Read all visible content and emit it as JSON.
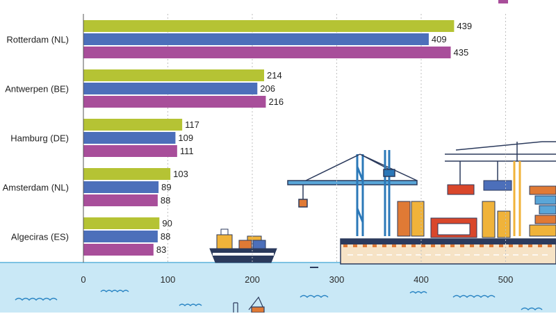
{
  "chart_data": {
    "type": "bar",
    "orientation": "horizontal",
    "categories": [
      "Rotterdam (NL)",
      "Antwerpen (BE)",
      "Hamburg (DE)",
      "Amsterdam (NL)",
      "Algeciras (ES)"
    ],
    "series": [
      {
        "color": "#b5c334",
        "values": [
          439,
          214,
          117,
          103,
          90
        ]
      },
      {
        "color": "#4c6fba",
        "values": [
          409,
          206,
          109,
          89,
          88
        ]
      },
      {
        "color": "#a84e9a",
        "values": [
          435,
          216,
          111,
          88,
          83
        ]
      }
    ],
    "xlim": [
      0,
      550
    ],
    "xticks": [
      0,
      100,
      200,
      300,
      400,
      500
    ],
    "grid": true,
    "legend": "partially visible at top-right",
    "background_illustration": "port with cranes, containers, ship and sea"
  },
  "colors": {
    "sea": "#c9e8f6",
    "sea_line": "#7cc2e2",
    "axis": "#555555",
    "grid": "#bfbfbf"
  }
}
